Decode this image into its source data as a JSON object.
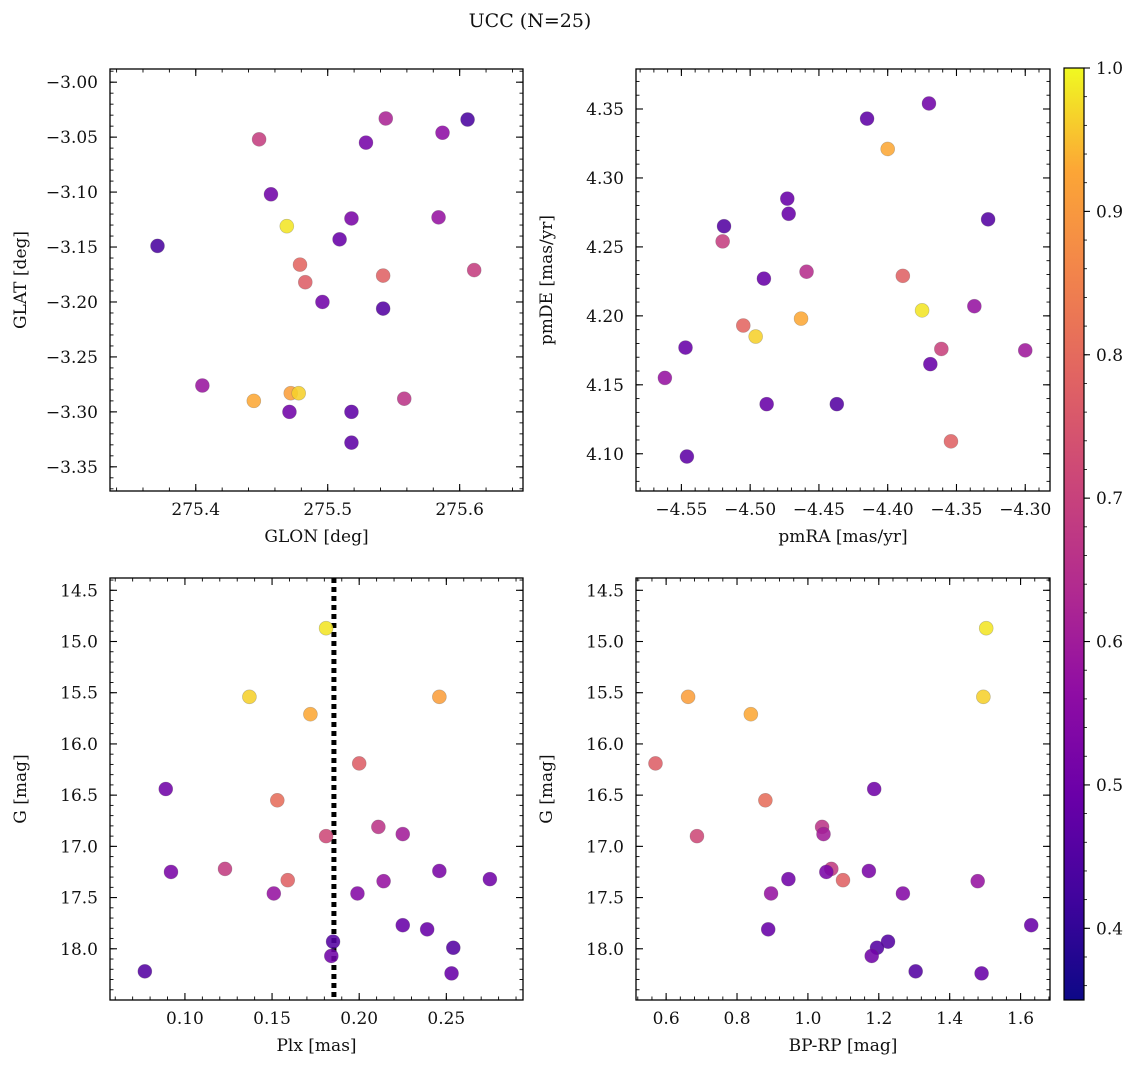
{
  "title": "UCC (N=25)",
  "colorbar": {
    "ticks": [
      "0.4",
      "0.5",
      "0.6",
      "0.7",
      "0.8",
      "0.9",
      "1.0"
    ],
    "range": [
      0.35,
      1.0
    ],
    "colormap": "plasma"
  },
  "chart_data": [
    {
      "type": "scatter",
      "xlabel": "GLON [deg]",
      "ylabel": "GLAT [deg]",
      "xlim": [
        275.335,
        275.648
      ],
      "ylim": [
        -3.372,
        -2.988
      ],
      "xticks": [
        "275.4",
        "275.5",
        "275.6"
      ],
      "yticks": [
        "−3.00",
        "−3.05",
        "−3.10",
        "−3.15",
        "−3.20",
        "−3.25",
        "−3.30",
        "−3.35"
      ],
      "xtick_values": [
        275.4,
        275.5,
        275.6
      ],
      "ytick_values": [
        -3.0,
        -3.05,
        -3.1,
        -3.15,
        -3.2,
        -3.25,
        -3.3,
        -3.35
      ],
      "vline": null,
      "points": [
        {
          "x": 275.371,
          "y": -3.149,
          "c": 0.36
        },
        {
          "x": 275.448,
          "y": -3.052,
          "c": 0.65
        },
        {
          "x": 275.457,
          "y": -3.102,
          "c": 0.44
        },
        {
          "x": 275.469,
          "y": -3.131,
          "c": 0.98
        },
        {
          "x": 275.405,
          "y": -3.276,
          "c": 0.53
        },
        {
          "x": 275.444,
          "y": -3.29,
          "c": 0.92
        },
        {
          "x": 275.472,
          "y": -3.283,
          "c": 0.9
        },
        {
          "x": 275.478,
          "y": -3.283,
          "c": 0.96
        },
        {
          "x": 275.471,
          "y": -3.3,
          "c": 0.44
        },
        {
          "x": 275.479,
          "y": -3.166,
          "c": 0.76
        },
        {
          "x": 275.483,
          "y": -3.182,
          "c": 0.74
        },
        {
          "x": 275.496,
          "y": -3.2,
          "c": 0.44
        },
        {
          "x": 275.509,
          "y": -3.143,
          "c": 0.42
        },
        {
          "x": 275.518,
          "y": -3.124,
          "c": 0.46
        },
        {
          "x": 275.518,
          "y": -3.3,
          "c": 0.4
        },
        {
          "x": 275.518,
          "y": -3.328,
          "c": 0.4
        },
        {
          "x": 275.529,
          "y": -3.055,
          "c": 0.45
        },
        {
          "x": 275.542,
          "y": -3.176,
          "c": 0.75
        },
        {
          "x": 275.542,
          "y": -3.206,
          "c": 0.38
        },
        {
          "x": 275.544,
          "y": -3.033,
          "c": 0.57
        },
        {
          "x": 275.558,
          "y": -3.288,
          "c": 0.62
        },
        {
          "x": 275.584,
          "y": -3.123,
          "c": 0.52
        },
        {
          "x": 275.587,
          "y": -3.046,
          "c": 0.5
        },
        {
          "x": 275.606,
          "y": -3.034,
          "c": 0.36
        },
        {
          "x": 275.611,
          "y": -3.171,
          "c": 0.65
        }
      ]
    },
    {
      "type": "scatter",
      "xlabel": "pmRA [mas/yr]",
      "ylabel": "pmDE [mas/yr]",
      "xlim": [
        -4.583,
        -4.282
      ],
      "ylim": [
        4.073,
        4.379
      ],
      "xticks": [
        "−4.55",
        "−4.50",
        "−4.45",
        "−4.40",
        "−4.35",
        "−4.30"
      ],
      "yticks": [
        "4.10",
        "4.15",
        "4.20",
        "4.25",
        "4.30",
        "4.35"
      ],
      "xtick_values": [
        -4.55,
        -4.5,
        -4.45,
        -4.4,
        -4.35,
        -4.3
      ],
      "ytick_values": [
        4.1,
        4.15,
        4.2,
        4.25,
        4.3,
        4.35
      ],
      "vline": null,
      "points": [
        {
          "x": -4.562,
          "y": 4.155,
          "c": 0.52
        },
        {
          "x": -4.547,
          "y": 4.177,
          "c": 0.42
        },
        {
          "x": -4.546,
          "y": 4.098,
          "c": 0.4
        },
        {
          "x": -4.519,
          "y": 4.265,
          "c": 0.38
        },
        {
          "x": -4.52,
          "y": 4.254,
          "c": 0.65
        },
        {
          "x": -4.505,
          "y": 4.193,
          "c": 0.76
        },
        {
          "x": -4.496,
          "y": 4.185,
          "c": 0.96
        },
        {
          "x": -4.49,
          "y": 4.227,
          "c": 0.42
        },
        {
          "x": -4.488,
          "y": 4.136,
          "c": 0.42
        },
        {
          "x": -4.473,
          "y": 4.285,
          "c": 0.42
        },
        {
          "x": -4.472,
          "y": 4.274,
          "c": 0.42
        },
        {
          "x": -4.463,
          "y": 4.198,
          "c": 0.92
        },
        {
          "x": -4.459,
          "y": 4.232,
          "c": 0.6
        },
        {
          "x": -4.437,
          "y": 4.136,
          "c": 0.38
        },
        {
          "x": -4.415,
          "y": 4.343,
          "c": 0.4
        },
        {
          "x": -4.4,
          "y": 4.321,
          "c": 0.92
        },
        {
          "x": -4.389,
          "y": 4.229,
          "c": 0.75
        },
        {
          "x": -4.375,
          "y": 4.204,
          "c": 0.98
        },
        {
          "x": -4.37,
          "y": 4.354,
          "c": 0.44
        },
        {
          "x": -4.369,
          "y": 4.165,
          "c": 0.42
        },
        {
          "x": -4.361,
          "y": 4.176,
          "c": 0.66
        },
        {
          "x": -4.354,
          "y": 4.109,
          "c": 0.75
        },
        {
          "x": -4.337,
          "y": 4.207,
          "c": 0.52
        },
        {
          "x": -4.327,
          "y": 4.27,
          "c": 0.38
        },
        {
          "x": -4.3,
          "y": 4.175,
          "c": 0.54
        }
      ]
    },
    {
      "type": "scatter",
      "xlabel": "Plx [mas]",
      "ylabel": "G [mag]",
      "xlim": [
        0.057,
        0.294
      ],
      "ylim": [
        18.5,
        14.38
      ],
      "xticks": [
        "0.10",
        "0.15",
        "0.20",
        "0.25"
      ],
      "yticks": [
        "14.5",
        "15.0",
        "15.5",
        "16.0",
        "16.5",
        "17.0",
        "17.5",
        "18.0"
      ],
      "xtick_values": [
        0.1,
        0.15,
        0.2,
        0.25
      ],
      "ytick_values": [
        14.5,
        15.0,
        15.5,
        16.0,
        16.5,
        17.0,
        17.5,
        18.0
      ],
      "vline": 0.1855,
      "points": [
        {
          "x": 0.181,
          "y": 14.87,
          "c": 0.98
        },
        {
          "x": 0.137,
          "y": 15.54,
          "c": 0.96
        },
        {
          "x": 0.246,
          "y": 15.54,
          "c": 0.9
        },
        {
          "x": 0.172,
          "y": 15.71,
          "c": 0.92
        },
        {
          "x": 0.2,
          "y": 16.19,
          "c": 0.74
        },
        {
          "x": 0.089,
          "y": 16.44,
          "c": 0.44
        },
        {
          "x": 0.153,
          "y": 16.55,
          "c": 0.78
        },
        {
          "x": 0.181,
          "y": 16.9,
          "c": 0.68
        },
        {
          "x": 0.211,
          "y": 16.81,
          "c": 0.62
        },
        {
          "x": 0.225,
          "y": 16.88,
          "c": 0.55
        },
        {
          "x": 0.123,
          "y": 17.22,
          "c": 0.64
        },
        {
          "x": 0.092,
          "y": 17.25,
          "c": 0.46
        },
        {
          "x": 0.246,
          "y": 17.24,
          "c": 0.46
        },
        {
          "x": 0.159,
          "y": 17.33,
          "c": 0.75
        },
        {
          "x": 0.214,
          "y": 17.34,
          "c": 0.52
        },
        {
          "x": 0.275,
          "y": 17.32,
          "c": 0.44
        },
        {
          "x": 0.151,
          "y": 17.46,
          "c": 0.52
        },
        {
          "x": 0.199,
          "y": 17.46,
          "c": 0.48
        },
        {
          "x": 0.225,
          "y": 17.77,
          "c": 0.42
        },
        {
          "x": 0.239,
          "y": 17.81,
          "c": 0.42
        },
        {
          "x": 0.185,
          "y": 17.93,
          "c": 0.38
        },
        {
          "x": 0.254,
          "y": 17.99,
          "c": 0.38
        },
        {
          "x": 0.184,
          "y": 18.07,
          "c": 0.44
        },
        {
          "x": 0.077,
          "y": 18.22,
          "c": 0.38
        },
        {
          "x": 0.253,
          "y": 18.24,
          "c": 0.42
        }
      ]
    },
    {
      "type": "scatter",
      "xlabel": "BP-RP [mag]",
      "ylabel": "G [mag]",
      "xlim": [
        0.515,
        1.683
      ],
      "ylim": [
        18.5,
        14.38
      ],
      "xticks": [
        "0.6",
        "0.8",
        "1.0",
        "1.2",
        "1.4",
        "1.6"
      ],
      "yticks": [
        "14.5",
        "15.0",
        "15.5",
        "16.0",
        "16.5",
        "17.0",
        "17.5",
        "18.0"
      ],
      "xtick_values": [
        0.6,
        0.8,
        1.0,
        1.2,
        1.4,
        1.6
      ],
      "ytick_values": [
        14.5,
        15.0,
        15.5,
        16.0,
        16.5,
        17.0,
        17.5,
        18.0
      ],
      "vline": null,
      "points": [
        {
          "x": 1.503,
          "y": 14.87,
          "c": 0.98
        },
        {
          "x": 0.662,
          "y": 15.54,
          "c": 0.9
        },
        {
          "x": 1.495,
          "y": 15.54,
          "c": 0.96
        },
        {
          "x": 0.839,
          "y": 15.71,
          "c": 0.92
        },
        {
          "x": 0.57,
          "y": 16.19,
          "c": 0.74
        },
        {
          "x": 1.187,
          "y": 16.44,
          "c": 0.44
        },
        {
          "x": 0.88,
          "y": 16.55,
          "c": 0.78
        },
        {
          "x": 0.687,
          "y": 16.9,
          "c": 0.68
        },
        {
          "x": 1.04,
          "y": 16.81,
          "c": 0.62
        },
        {
          "x": 1.044,
          "y": 16.88,
          "c": 0.55
        },
        {
          "x": 1.066,
          "y": 17.22,
          "c": 0.64
        },
        {
          "x": 1.052,
          "y": 17.25,
          "c": 0.46
        },
        {
          "x": 1.172,
          "y": 17.24,
          "c": 0.46
        },
        {
          "x": 1.099,
          "y": 17.33,
          "c": 0.75
        },
        {
          "x": 1.479,
          "y": 17.34,
          "c": 0.52
        },
        {
          "x": 0.945,
          "y": 17.32,
          "c": 0.44
        },
        {
          "x": 0.896,
          "y": 17.46,
          "c": 0.52
        },
        {
          "x": 1.268,
          "y": 17.46,
          "c": 0.48
        },
        {
          "x": 1.63,
          "y": 17.77,
          "c": 0.42
        },
        {
          "x": 0.888,
          "y": 17.81,
          "c": 0.42
        },
        {
          "x": 1.226,
          "y": 17.93,
          "c": 0.38
        },
        {
          "x": 1.195,
          "y": 17.99,
          "c": 0.38
        },
        {
          "x": 1.18,
          "y": 18.07,
          "c": 0.44
        },
        {
          "x": 1.304,
          "y": 18.22,
          "c": 0.38
        },
        {
          "x": 1.49,
          "y": 18.24,
          "c": 0.42
        }
      ]
    }
  ]
}
